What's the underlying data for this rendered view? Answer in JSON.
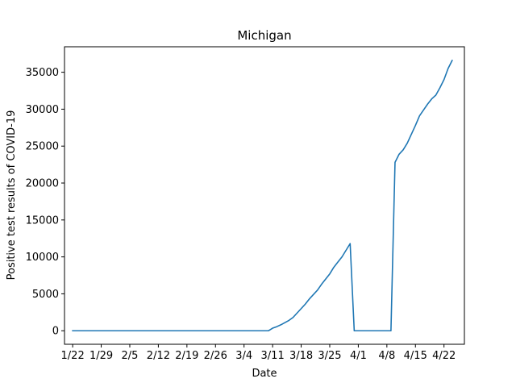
{
  "chart_data": {
    "type": "line",
    "title": "Michigan",
    "xlabel": "Date",
    "ylabel": "Positive test results of COVID-19",
    "x_tick_labels": [
      "1/22",
      "1/29",
      "2/5",
      "2/12",
      "2/19",
      "2/26",
      "3/4",
      "3/11",
      "3/18",
      "3/25",
      "4/1",
      "4/8",
      "4/15",
      "4/22"
    ],
    "y_tick_labels": [
      "0",
      "5000",
      "10000",
      "15000",
      "20000",
      "25000",
      "30000",
      "35000"
    ],
    "ylim": [
      -1830,
      38450
    ],
    "xlim": [
      "1/20",
      "4/27"
    ],
    "grid": false,
    "legend": "none",
    "series": [
      {
        "color": "#1f77b4",
        "x": [
          "1/22",
          "1/23",
          "1/24",
          "1/25",
          "1/26",
          "1/27",
          "1/28",
          "1/29",
          "1/30",
          "1/31",
          "2/1",
          "2/2",
          "2/3",
          "2/4",
          "2/5",
          "2/6",
          "2/7",
          "2/8",
          "2/9",
          "2/10",
          "2/11",
          "2/12",
          "2/13",
          "2/14",
          "2/15",
          "2/16",
          "2/17",
          "2/18",
          "2/19",
          "2/20",
          "2/21",
          "2/22",
          "2/23",
          "2/24",
          "2/25",
          "2/26",
          "2/27",
          "2/28",
          "2/29",
          "3/1",
          "3/2",
          "3/3",
          "3/4",
          "3/5",
          "3/6",
          "3/7",
          "3/8",
          "3/9",
          "3/10",
          "3/11",
          "3/12",
          "3/13",
          "3/14",
          "3/15",
          "3/16",
          "3/17",
          "3/18",
          "3/19",
          "3/20",
          "3/21",
          "3/22",
          "3/23",
          "3/24",
          "3/25",
          "3/26",
          "3/27",
          "3/28",
          "3/29",
          "3/30",
          "3/31",
          "4/1",
          "4/2",
          "4/3",
          "4/4",
          "4/5",
          "4/6",
          "4/7",
          "4/8",
          "4/9",
          "4/10",
          "4/11",
          "4/12",
          "4/13",
          "4/14",
          "4/15",
          "4/16",
          "4/17",
          "4/18",
          "4/19",
          "4/20",
          "4/21",
          "4/22",
          "4/23",
          "4/24"
        ],
        "y": [
          0,
          0,
          0,
          0,
          0,
          0,
          0,
          0,
          0,
          0,
          0,
          0,
          0,
          0,
          0,
          0,
          0,
          0,
          0,
          0,
          0,
          0,
          0,
          0,
          0,
          0,
          0,
          0,
          0,
          0,
          0,
          0,
          0,
          0,
          0,
          0,
          0,
          0,
          0,
          0,
          0,
          0,
          0,
          0,
          0,
          0,
          0,
          0,
          2,
          350,
          550,
          800,
          1100,
          1400,
          1800,
          2400,
          3000,
          3600,
          4300,
          4900,
          5500,
          6300,
          7000,
          7700,
          8600,
          9300,
          10000,
          10900,
          11800,
          0,
          0,
          0,
          0,
          0,
          0,
          0,
          0,
          0,
          0,
          22800,
          23900,
          24500,
          25400,
          26600,
          27800,
          29100,
          29900,
          30700,
          31400,
          31900,
          32900,
          34000,
          35500,
          36600
        ]
      }
    ]
  }
}
